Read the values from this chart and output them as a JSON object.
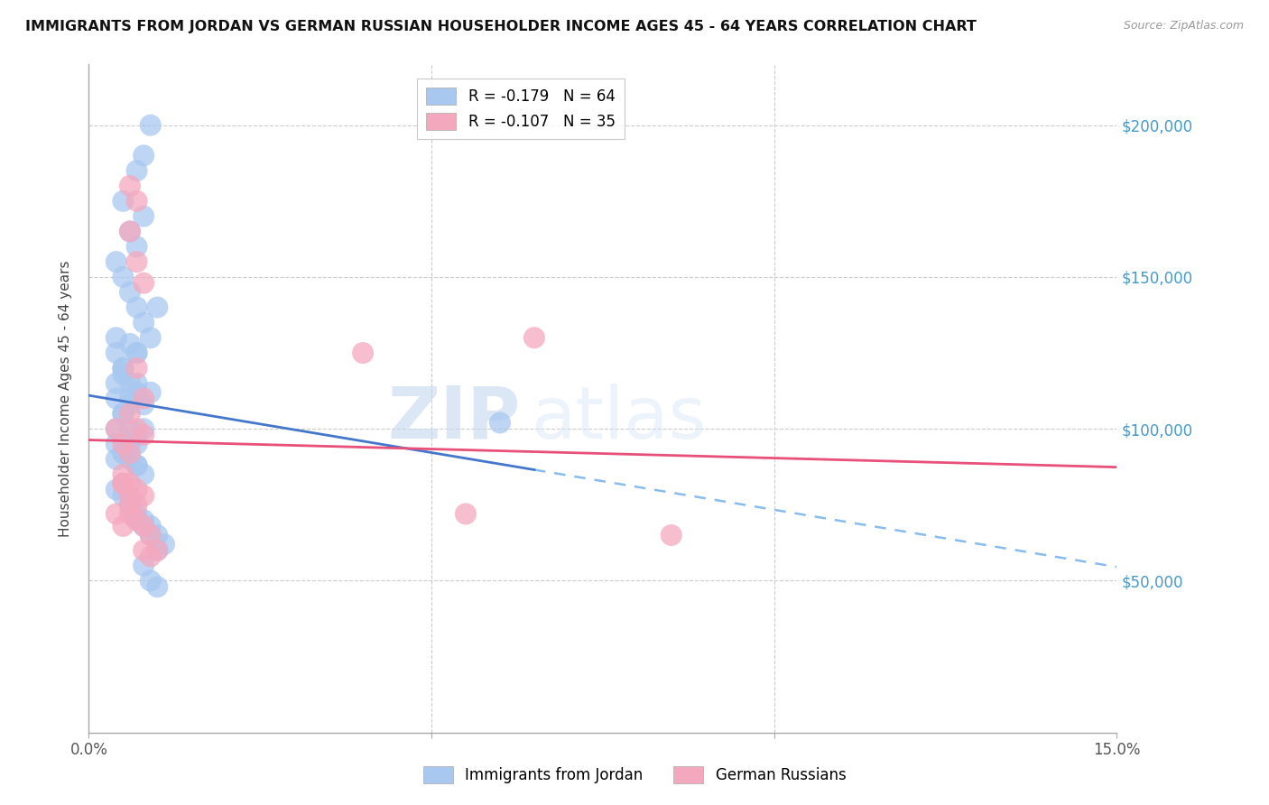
{
  "title": "IMMIGRANTS FROM JORDAN VS GERMAN RUSSIAN HOUSEHOLDER INCOME AGES 45 - 64 YEARS CORRELATION CHART",
  "source": "Source: ZipAtlas.com",
  "ylabel": "Householder Income Ages 45 - 64 years",
  "xlim": [
    0.0,
    0.15
  ],
  "ylim": [
    0,
    220000
  ],
  "yticks": [
    0,
    50000,
    100000,
    150000,
    200000
  ],
  "ytick_labels": [
    "",
    "$50,000",
    "$100,000",
    "$150,000",
    "$200,000"
  ],
  "xticks": [
    0.0,
    0.05,
    0.1,
    0.15
  ],
  "xtick_labels": [
    "0.0%",
    "",
    "",
    "15.0%"
  ],
  "grid_color": "#cccccc",
  "background_color": "#ffffff",
  "series1_name": "Immigrants from Jordan",
  "series1_color": "#a8c8f0",
  "series1_R": "-0.179",
  "series1_N": "64",
  "series2_name": "German Russians",
  "series2_color": "#f4a8be",
  "series2_R": "-0.107",
  "series2_N": "35",
  "line1_solid_color": "#4477cc",
  "line1_dash_color": "#88bbee",
  "line2_color": "#e8507a",
  "watermark_zip": "ZIP",
  "watermark_atlas": "atlas",
  "jordan_x": [
    0.005,
    0.01,
    0.007,
    0.008,
    0.008,
    0.009,
    0.006,
    0.007,
    0.004,
    0.004,
    0.005,
    0.006,
    0.004,
    0.005,
    0.007,
    0.007,
    0.004,
    0.005,
    0.006,
    0.004,
    0.005,
    0.006,
    0.007,
    0.008,
    0.009,
    0.005,
    0.006,
    0.007,
    0.008,
    0.007,
    0.004,
    0.004,
    0.005,
    0.006,
    0.007,
    0.008,
    0.006,
    0.007,
    0.005,
    0.004,
    0.005,
    0.005,
    0.006,
    0.007,
    0.008,
    0.009,
    0.01,
    0.011,
    0.007,
    0.008,
    0.009,
    0.01,
    0.008,
    0.009,
    0.01,
    0.06,
    0.004,
    0.005,
    0.006,
    0.007,
    0.008,
    0.009,
    0.006,
    0.007
  ],
  "jordan_y": [
    175000,
    140000,
    185000,
    190000,
    170000,
    200000,
    165000,
    160000,
    130000,
    125000,
    120000,
    115000,
    110000,
    120000,
    125000,
    115000,
    100000,
    105000,
    108000,
    115000,
    118000,
    110000,
    112000,
    108000,
    112000,
    105000,
    100000,
    95000,
    100000,
    98000,
    95000,
    90000,
    92000,
    95000,
    88000,
    85000,
    90000,
    88000,
    92000,
    80000,
    82000,
    78000,
    75000,
    72000,
    70000,
    68000,
    65000,
    62000,
    70000,
    68000,
    65000,
    60000,
    55000,
    50000,
    48000,
    102000,
    155000,
    150000,
    145000,
    140000,
    135000,
    130000,
    128000,
    125000
  ],
  "german_x": [
    0.004,
    0.005,
    0.006,
    0.007,
    0.005,
    0.004,
    0.006,
    0.007,
    0.008,
    0.006,
    0.005,
    0.006,
    0.007,
    0.005,
    0.006,
    0.005,
    0.006,
    0.007,
    0.008,
    0.006,
    0.007,
    0.008,
    0.009,
    0.008,
    0.009,
    0.01,
    0.008,
    0.007,
    0.006,
    0.007,
    0.008,
    0.04,
    0.055,
    0.065,
    0.085
  ],
  "german_y": [
    100000,
    95000,
    165000,
    175000,
    82000,
    72000,
    105000,
    100000,
    98000,
    92000,
    82000,
    78000,
    75000,
    68000,
    72000,
    85000,
    82000,
    80000,
    78000,
    75000,
    70000,
    68000,
    65000,
    60000,
    58000,
    60000,
    110000,
    120000,
    180000,
    155000,
    148000,
    125000,
    72000,
    130000,
    65000
  ]
}
